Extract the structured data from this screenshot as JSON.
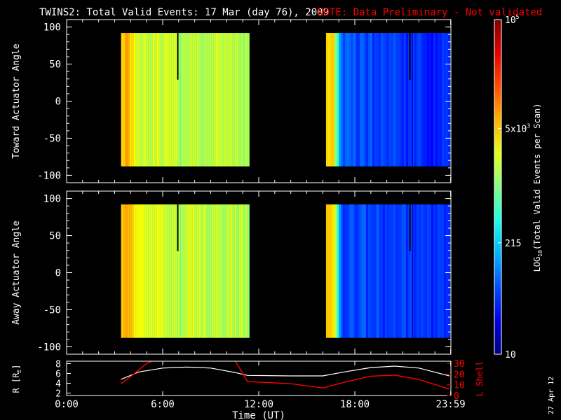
{
  "chart_data": {
    "type": "heatmap",
    "title": "TWINS2: Total Valid Events: 17 Mar (day  76), 2009",
    "note": "NOTE: Data Preliminary - Not validated",
    "colorbar": {
      "label": "LOG",
      "label_sub": "10",
      "label_rest": "(Total Valid  Events per Scan)",
      "ticks": [
        {
          "value": 10,
          "label": "10"
        },
        {
          "value": 215,
          "label": "215"
        },
        {
          "value": 5000,
          "label": "5x10",
          "sup": "3"
        },
        {
          "value": 100000,
          "label": "10",
          "sup": "5"
        }
      ],
      "range": [
        10,
        100000
      ],
      "scale": "log"
    },
    "panels": [
      {
        "ylabel": "Toward Actuator Angle",
        "yticks": [
          100,
          50,
          0,
          -50,
          -100
        ],
        "ylim": [
          -110,
          110
        ],
        "blocks": [
          {
            "x_start_hr": 3.4,
            "x_end_hr": 11.35,
            "y_min": -88,
            "y_max": 92,
            "base_level": 0.55,
            "left_level": 0.7
          },
          {
            "x_start_hr": 16.2,
            "x_end_hr": 23.9,
            "y_min": -88,
            "y_max": 92,
            "base_level": 0.16,
            "left_level": 0.65
          }
        ]
      },
      {
        "ylabel": "Away Actuator Angle",
        "yticks": [
          100,
          50,
          0,
          -50,
          -100
        ],
        "ylim": [
          -110,
          110
        ],
        "blocks": [
          {
            "x_start_hr": 3.4,
            "x_end_hr": 11.35,
            "y_min": -88,
            "y_max": 92,
            "base_level": 0.55,
            "left_level": 0.7
          },
          {
            "x_start_hr": 16.2,
            "x_end_hr": 23.9,
            "y_min": -88,
            "y_max": 92,
            "base_level": 0.16,
            "left_level": 0.65
          }
        ]
      }
    ],
    "orbit": {
      "ylabel_left": "R [R",
      "ylabel_left_sub": "E",
      "ylabel_left_end": "]",
      "ylabel_right": "L Shell",
      "left_ticks": [
        2,
        4,
        6,
        8
      ],
      "left_lim": [
        1.5,
        8.5
      ],
      "right_ticks": [
        0,
        10,
        20,
        30
      ],
      "right_lim": [
        0,
        32
      ],
      "r_series": {
        "name": "R",
        "color": "#ffffff",
        "x": [
          3.4,
          4.5,
          6,
          7.5,
          9,
          10.5,
          11.3,
          14,
          16,
          17.5,
          19,
          20.5,
          22,
          23.9
        ],
        "y": [
          4.8,
          6.3,
          7.1,
          7.3,
          7.1,
          6.2,
          5.6,
          5.5,
          5.5,
          6.4,
          7.2,
          7.5,
          7.1,
          5.5
        ]
      },
      "l_series": {
        "name": "L Shell",
        "color": "#ff0000",
        "x": [
          3.4,
          4.2,
          5.0,
          5.5,
          10.5,
          11.3,
          14,
          16,
          17.5,
          19,
          20.5,
          22,
          23.9
        ],
        "y": [
          11,
          20,
          30,
          33,
          33,
          13,
          11,
          7,
          13,
          18,
          19,
          15,
          6
        ]
      }
    },
    "xaxis": {
      "label": "Time (UT)",
      "ticks": [
        {
          "value": 0,
          "label": "0:00"
        },
        {
          "value": 6,
          "label": "6:00"
        },
        {
          "value": 12,
          "label": "12:00"
        },
        {
          "value": 18,
          "label": "18:00"
        },
        {
          "value": 23.983,
          "label": "23:59"
        }
      ],
      "xlim": [
        0,
        24
      ]
    },
    "date_stamp": "27 Apr 12"
  },
  "colors": {
    "background": "#000000",
    "axes": "#ffffff",
    "note": "#ff0000"
  }
}
